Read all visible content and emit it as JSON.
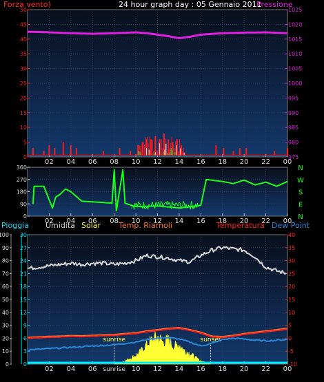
{
  "header": {
    "title": "24 hour graph day : 05 Gennaio 2011",
    "left_label": "Forza vento)",
    "right_label": "Pressione"
  },
  "colors": {
    "background": "#000000",
    "plot_bg_top": "#0a0f1c",
    "plot_bg_bottom": "#13386b",
    "wind": "#ff1a1a",
    "gust": "#ffffff",
    "wind_max": "#18e018",
    "pressure": "#e020e0",
    "direction": "#18ff18",
    "rain": "#00e5ff",
    "humidity": "#d9d9d9",
    "solar": "#ffff33",
    "soil_temp": "#ff7722",
    "temperature": "#ff2020",
    "dewpoint": "#2a8ad8",
    "grid": "#2d3b57",
    "frame": "#7a7a7a"
  },
  "chart_data": [
    {
      "type": "line",
      "name": "wind-pressure",
      "title": "24 hour graph day : 05 Gennaio 2011",
      "xlabel": "",
      "x_ticks": [
        "02",
        "04",
        "06",
        "08",
        "10",
        "12",
        "14",
        "16",
        "18",
        "20",
        "22",
        "00"
      ],
      "y_left_label": "Forza vento)",
      "y_left_ticks": [
        0,
        5,
        10,
        15,
        20,
        25,
        30,
        35,
        40,
        45,
        50
      ],
      "y_left_lim": [
        0,
        50
      ],
      "y_right_label": "Pressione",
      "y_right_ticks": [
        975,
        980,
        985,
        990,
        995,
        1000,
        1005,
        1010,
        1015,
        1020,
        1025
      ],
      "y_right_lim": [
        975,
        1025
      ],
      "series": [
        {
          "name": "Pressione",
          "axis": "right",
          "x": [
            0,
            2,
            4,
            6,
            8,
            10,
            11,
            12,
            13,
            14,
            15,
            16,
            18,
            20,
            22,
            24
          ],
          "y": [
            1017.5,
            1017.3,
            1017.0,
            1016.8,
            1017.0,
            1017.3,
            1017.0,
            1016.5,
            1016.0,
            1015.3,
            1015.8,
            1016.5,
            1017.0,
            1017.2,
            1017.3,
            1017.0
          ]
        },
        {
          "name": "wind",
          "axis": "left",
          "x": [
            0.5,
            1.5,
            2.0,
            2.5,
            3.3,
            4.0,
            4.5,
            7.0,
            8.5,
            9.5,
            10.2,
            10.6,
            11.0,
            11.4,
            11.8,
            12.2,
            12.6,
            13.0,
            13.4,
            13.8,
            14.2,
            17.4,
            18.1,
            19.0,
            19.6,
            20.2,
            22.8,
            24.0
          ],
          "y": [
            3,
            2,
            4,
            3,
            5,
            4,
            3,
            2,
            3,
            2,
            4,
            5,
            6,
            6,
            7,
            6,
            8,
            6,
            5,
            6,
            4,
            4,
            3,
            2,
            3,
            3,
            2,
            3
          ]
        }
      ]
    },
    {
      "type": "line",
      "name": "wind-direction",
      "x_ticks": [
        "02",
        "04",
        "06",
        "08",
        "10",
        "12",
        "14",
        "16",
        "18",
        "20",
        "22",
        "00"
      ],
      "y_left_ticks": [
        0,
        90,
        180,
        270,
        360
      ],
      "y_left_lim": [
        0,
        360
      ],
      "y_right_labels": [
        "N",
        "W",
        "S",
        "E",
        "N"
      ],
      "series": [
        {
          "name": "direction",
          "x": [
            0.5,
            0.6,
            1.5,
            1.6,
            2.3,
            2.6,
            3.0,
            3.5,
            4.0,
            5.0,
            6.0,
            7.0,
            7.8,
            8.0,
            8.2,
            8.8,
            9.0,
            10.0,
            12.0,
            14.0,
            16.0,
            16.5,
            18.0,
            19.0,
            20.0,
            21.0,
            22.0,
            23.0,
            24.0
          ],
          "y": [
            90,
            220,
            220,
            200,
            60,
            140,
            160,
            200,
            180,
            110,
            105,
            100,
            95,
            340,
            40,
            340,
            95,
            70,
            75,
            60,
            80,
            270,
            255,
            240,
            265,
            230,
            250,
            220,
            255
          ]
        }
      ]
    },
    {
      "type": "line",
      "name": "temperature-humidity",
      "x_ticks": [
        "02",
        "04",
        "06",
        "sunrise",
        "10",
        "12",
        "14",
        "16",
        "18",
        "20",
        "22",
        "00"
      ],
      "legend": [
        "Pioggia",
        "Umidita",
        "Solar",
        "Temp. Riarnoli",
        "Temperatura",
        "Dew Point"
      ],
      "y_left_outer_ticks": [
        0,
        10,
        20,
        30,
        40,
        50,
        60,
        70,
        80,
        90,
        100
      ],
      "y_left_inner_ticks": [
        0,
        3,
        6,
        9,
        12,
        15,
        18,
        21,
        24,
        27,
        30
      ],
      "y_right_ticks": [
        -10,
        -5,
        0,
        5,
        10,
        15,
        20,
        25,
        30,
        35,
        40
      ],
      "y_right_lim": [
        -10,
        40
      ],
      "annotations": [
        {
          "text": "sunrise",
          "x": 8.0
        },
        {
          "text": "sunset",
          "x": 16.9
        }
      ],
      "series": [
        {
          "name": "Umidita",
          "axis": "left_outer",
          "x": [
            0,
            1,
            2,
            3,
            4,
            5,
            6,
            7,
            8,
            9,
            10,
            11,
            12,
            13,
            14,
            15,
            16,
            17,
            18,
            19,
            20,
            21,
            22,
            23,
            24
          ],
          "y": [
            74,
            75,
            76,
            77,
            78,
            77,
            78,
            78,
            77,
            78,
            80,
            84,
            83,
            82,
            80,
            79,
            84,
            88,
            90,
            89,
            88,
            83,
            75,
            72,
            70
          ]
        },
        {
          "name": "Temperatura",
          "axis": "right",
          "x": [
            0,
            1,
            2,
            3,
            4,
            5,
            6,
            7,
            8,
            9,
            10,
            11,
            12,
            13,
            14,
            15,
            16,
            17,
            18,
            19,
            20,
            21,
            22,
            23,
            24
          ],
          "y": [
            0,
            0.2,
            0.4,
            0.5,
            0.7,
            0.6,
            0.8,
            1.0,
            1.1,
            1.5,
            1.8,
            2.5,
            3.0,
            3.5,
            3.8,
            3.0,
            2.0,
            0.5,
            0.3,
            0.8,
            1.5,
            2.0,
            2.5,
            3.0,
            3.5
          ]
        },
        {
          "name": "Temp. Riarnoli",
          "axis": "right",
          "x": [
            0,
            1,
            2,
            3,
            4,
            5,
            6,
            7,
            8,
            9,
            10,
            11,
            12,
            13,
            14,
            15,
            16,
            17,
            18,
            19,
            20,
            21,
            22,
            23,
            24
          ],
          "y": [
            0.3,
            0.5,
            0.7,
            0.8,
            1.0,
            0.9,
            1.1,
            1.3,
            1.4,
            1.8,
            2.1,
            2.8,
            3.3,
            3.8,
            4.1,
            3.3,
            2.3,
            0.8,
            0.6,
            1.1,
            1.8,
            2.3,
            2.8,
            3.3,
            3.8
          ]
        },
        {
          "name": "Dew Point",
          "axis": "right",
          "x": [
            0,
            1,
            2,
            3,
            4,
            5,
            6,
            7,
            8,
            9,
            10,
            11,
            12,
            13,
            14,
            15,
            16,
            17,
            18,
            19,
            20,
            21,
            22,
            23,
            24
          ],
          "y": [
            -4.5,
            -4.3,
            -4.0,
            -3.8,
            -3.5,
            -3.3,
            -3.0,
            -2.8,
            -2.5,
            -2.0,
            -1.5,
            -0.5,
            0.0,
            0.2,
            -0.3,
            -1.5,
            -3.0,
            -2.0,
            -0.5,
            0.0,
            -0.3,
            -0.8,
            -1.0,
            -0.8,
            -0.5
          ]
        },
        {
          "name": "Solar",
          "axis": "left_outer",
          "x": [
            8.0,
            9.0,
            10.0,
            10.5,
            11.0,
            11.5,
            12.0,
            12.5,
            13.0,
            13.5,
            14.0,
            14.5,
            15.0,
            15.5,
            16.0,
            16.9
          ],
          "y": [
            0,
            3,
            8,
            12,
            18,
            22,
            25,
            20,
            22,
            16,
            18,
            12,
            10,
            6,
            3,
            0
          ]
        },
        {
          "name": "Pioggia",
          "axis": "left_inner",
          "x": [
            0,
            24
          ],
          "y": [
            0,
            0
          ]
        }
      ]
    }
  ]
}
